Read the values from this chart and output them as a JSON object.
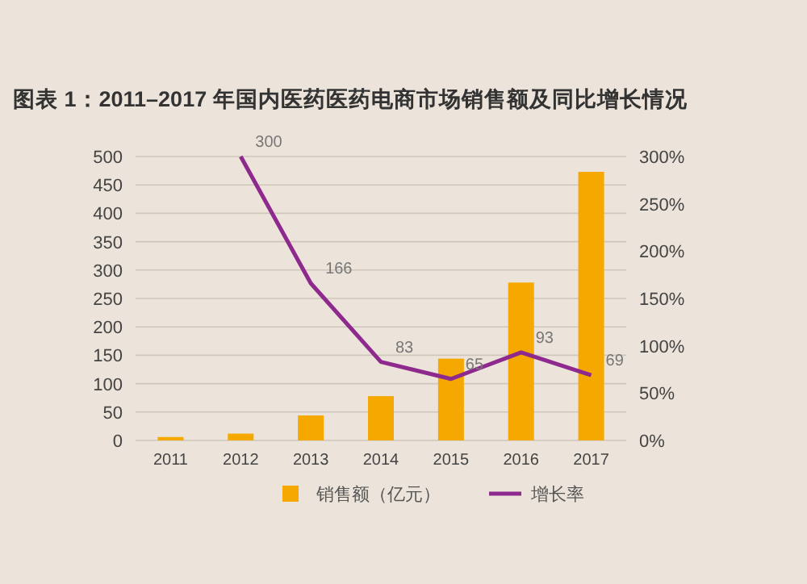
{
  "chart_data": {
    "type": "bar",
    "title": "图表 1：2011–2017 年国内医药医药电商市场销售额及同比增长情况",
    "categories": [
      "2011",
      "2012",
      "2013",
      "2014",
      "2015",
      "2016",
      "2017"
    ],
    "series": [
      {
        "name": "销售额（亿元）",
        "color": "#f5a800",
        "values": [
          6,
          12,
          44,
          78,
          144,
          278,
          473
        ]
      },
      {
        "name": "增长率",
        "type": "line",
        "axis": "y2",
        "color": "#8e2a8e",
        "values": [
          null,
          300,
          166,
          83,
          65,
          93,
          69
        ],
        "value_labels": [
          null,
          "300",
          "166",
          "83",
          "65",
          "93",
          "69"
        ]
      }
    ],
    "ylim": [
      0,
      500
    ],
    "yticks": [
      0,
      50,
      100,
      150,
      200,
      250,
      300,
      350,
      400,
      450,
      500
    ],
    "y2lim": [
      0,
      300
    ],
    "y2ticks": [
      {
        "value": 0,
        "label": "0%"
      },
      {
        "value": 50,
        "label": "50%"
      },
      {
        "value": 100,
        "label": "100%"
      },
      {
        "value": 150,
        "label": "150%"
      },
      {
        "value": 200,
        "label": "200%"
      },
      {
        "value": 250,
        "label": "250%"
      },
      {
        "value": 300,
        "label": "300%"
      }
    ],
    "grid": "y",
    "legend": "bottom",
    "marker": "none"
  }
}
